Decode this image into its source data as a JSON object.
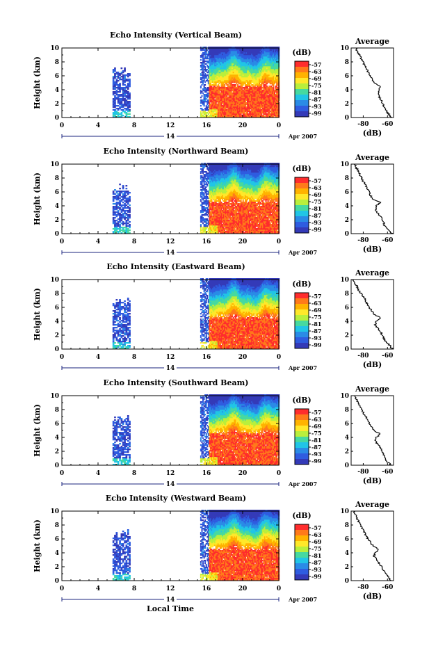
{
  "chart_data": {
    "type": "heatmap",
    "x_axis": {
      "ticks": [
        "0",
        "4",
        "8",
        "12",
        "16",
        "20",
        "0"
      ],
      "xlim": [
        0,
        24
      ],
      "day_label": "14",
      "date_label": "Apr 2007",
      "label": "Local Time"
    },
    "y_axis": {
      "label": "Height (km)",
      "ticks": [
        "0",
        "2",
        "4",
        "6",
        "8",
        "10"
      ],
      "ylim": [
        0,
        10
      ]
    },
    "colorbar": {
      "unit": "(dB)",
      "ticks": [
        "-57",
        "-63",
        "-69",
        "-75",
        "-81",
        "-87",
        "-93",
        "-99"
      ],
      "colors": [
        "#ff2d2d",
        "#ff7a1a",
        "#ffb300",
        "#ffe82a",
        "#b9ef3c",
        "#46d9a0",
        "#21c5e6",
        "#2a8be6",
        "#2f5ce0",
        "#343ab8"
      ]
    },
    "average": {
      "title": "Average",
      "xlabel": "(dB)",
      "xticks": [
        "-80",
        "-60"
      ],
      "xlim": [
        -90,
        -55
      ],
      "ylim": [
        0,
        10
      ]
    },
    "data_segments_hours": [
      [
        5.6,
        7.5
      ],
      [
        15.3,
        24.0
      ]
    ],
    "panels": [
      {
        "title": "Echo Intensity (Vertical Beam)",
        "average_profile": {
          "height_km": [
            0,
            0.5,
            1,
            1.5,
            2,
            2.5,
            3,
            3.5,
            4,
            4.5,
            5,
            5.5,
            6,
            6.5,
            7,
            7.5,
            8,
            8.5,
            9,
            9.5,
            10
          ],
          "db": [
            -57,
            -59,
            -61,
            -63,
            -64,
            -65,
            -67,
            -68,
            -67,
            -66,
            -71,
            -73,
            -74,
            -76,
            -77,
            -79,
            -80,
            -82,
            -83,
            -85,
            -86
          ]
        }
      },
      {
        "title": "Echo Intensity (Northward Beam)",
        "average_profile": {
          "height_km": [
            0,
            0.5,
            1,
            1.5,
            2,
            2.5,
            3,
            3.5,
            4,
            4.5,
            5,
            5.5,
            6,
            6.5,
            7,
            7.5,
            8,
            8.5,
            9,
            9.5,
            10
          ],
          "db": [
            -56,
            -59,
            -62,
            -63,
            -64,
            -66,
            -68,
            -70,
            -69,
            -66,
            -72,
            -74,
            -75,
            -77,
            -78,
            -80,
            -81,
            -83,
            -84,
            -86,
            -87
          ]
        }
      },
      {
        "title": "Echo Intensity (Eastward Beam)",
        "average_profile": {
          "height_km": [
            0,
            0.5,
            1,
            1.5,
            2,
            2.5,
            3,
            3.5,
            4,
            4.5,
            5,
            5.5,
            6,
            6.5,
            7,
            7.5,
            8,
            8.5,
            9,
            9.5,
            10
          ],
          "db": [
            -56,
            -58,
            -61,
            -63,
            -64,
            -66,
            -68,
            -70,
            -69,
            -66,
            -71,
            -73,
            -75,
            -77,
            -78,
            -80,
            -82,
            -84,
            -85,
            -87,
            -88
          ]
        }
      },
      {
        "title": "Echo Intensity (Southward Beam)",
        "average_profile": {
          "height_km": [
            0,
            0.5,
            1,
            1.5,
            2,
            2.5,
            3,
            3.5,
            4,
            4.5,
            5,
            5.5,
            6,
            6.5,
            7,
            7.5,
            8,
            8.5,
            9,
            9.5,
            10
          ],
          "db": [
            -57,
            -60,
            -62,
            -63,
            -64,
            -66,
            -68,
            -70,
            -69,
            -66,
            -71,
            -73,
            -75,
            -77,
            -78,
            -80,
            -81,
            -83,
            -84,
            -86,
            -87
          ]
        }
      },
      {
        "title": "Echo Intensity (Westward Beam)",
        "average_profile": {
          "height_km": [
            0,
            0.5,
            1,
            1.5,
            2,
            2.5,
            3,
            3.5,
            4,
            4.5,
            5,
            5.5,
            6,
            6.5,
            7,
            7.5,
            8,
            8.5,
            9,
            9.5,
            10
          ],
          "db": [
            -57,
            -59,
            -61,
            -63,
            -65,
            -67,
            -69,
            -71,
            -70,
            -67,
            -72,
            -74,
            -76,
            -78,
            -79,
            -81,
            -82,
            -84,
            -85,
            -86,
            -88
          ]
        }
      }
    ]
  }
}
